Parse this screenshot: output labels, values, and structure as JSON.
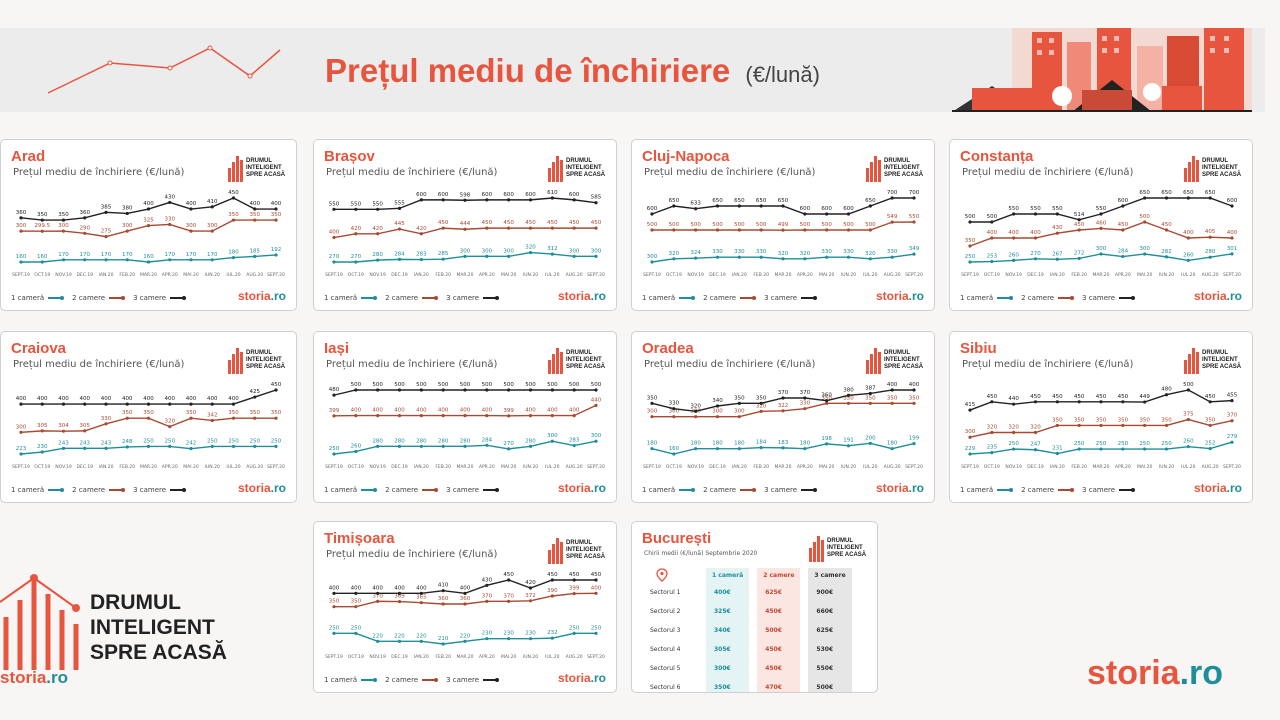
{
  "header": {
    "title": "Prețul mediu de închiriere",
    "unit": "(€/lună)"
  },
  "colors": {
    "accent": "#e8553e",
    "teal": "#1e8e9a",
    "brown": "#a84a32",
    "dark": "#222222"
  },
  "legend": {
    "s1": "1 cameră",
    "s2": "2 camere",
    "s3": "3 camere"
  },
  "logo_small": [
    "DRUMUL",
    "INTELIGENT",
    "SPRE ACASĂ"
  ],
  "card_subtitle": "Prețul mediu de închiriere (€/lună)",
  "storia": {
    "brand": "storia",
    "tld": ".ro"
  },
  "footer_logo": {
    "text": "DRUMUL\nINTELIGENT\nSPRE ACASĂ"
  },
  "months": [
    "SEPT.19",
    "OCT.19",
    "NOV.19",
    "DEC.19",
    "IAN.20",
    "FEB.20",
    "MAR.20",
    "APR.20",
    "MAI.20",
    "IUN.20",
    "IUL.20",
    "AUG.20",
    "SEPT.20"
  ],
  "chart_data": [
    {
      "type": "line",
      "city": "Arad",
      "series": [
        {
          "name": "1 cameră",
          "values": [
            160,
            160,
            170,
            170,
            170,
            170,
            160,
            170,
            170,
            170,
            180,
            185,
            192
          ]
        },
        {
          "name": "2 camere",
          "values": [
            300,
            299.5,
            300,
            290,
            275,
            300,
            325,
            330,
            300,
            300,
            350,
            350,
            350
          ]
        },
        {
          "name": "3 camere",
          "values": [
            360,
            350,
            350,
            360,
            385,
            380,
            400,
            430,
            400,
            410,
            450,
            400,
            400
          ]
        }
      ]
    },
    {
      "type": "line",
      "city": "Brașov",
      "series": [
        {
          "name": "1 cameră",
          "values": [
            270,
            270,
            280,
            284,
            283,
            285,
            300,
            300,
            300,
            320,
            312,
            300,
            300
          ]
        },
        {
          "name": "2 camere",
          "values": [
            400,
            420,
            420,
            445,
            420,
            450,
            444,
            450,
            450,
            450,
            450,
            450,
            450
          ]
        },
        {
          "name": "3 camere",
          "values": [
            550,
            550,
            550,
            555,
            600,
            600,
            598,
            600,
            600,
            600,
            610,
            600,
            585
          ]
        }
      ]
    },
    {
      "type": "line",
      "city": "Cluj-Napoca",
      "series": [
        {
          "name": "1 cameră",
          "values": [
            300,
            320,
            324,
            330,
            330,
            330,
            320,
            320,
            330,
            330,
            320,
            330,
            349
          ]
        },
        {
          "name": "2 camere",
          "values": [
            500,
            500,
            500,
            500,
            500,
            500,
            499,
            500,
            500,
            500,
            500,
            549,
            550
          ]
        },
        {
          "name": "3 camere",
          "values": [
            600,
            650,
            633,
            650,
            650,
            650,
            650,
            600,
            600,
            600,
            650,
            700,
            700
          ]
        }
      ]
    },
    {
      "type": "line",
      "city": "Constanța",
      "series": [
        {
          "name": "1 cameră",
          "values": [
            250,
            253,
            260,
            270,
            267,
            272,
            300,
            284,
            300,
            282,
            260,
            280,
            301
          ]
        },
        {
          "name": "2 camere",
          "values": [
            350,
            400,
            400,
            400,
            430,
            450,
            460,
            450,
            500,
            450,
            400,
            405,
            400
          ]
        },
        {
          "name": "3 camere",
          "values": [
            500,
            500,
            550,
            550,
            550,
            514,
            550,
            600,
            650,
            650,
            650,
            650,
            600
          ]
        }
      ]
    },
    {
      "type": "line",
      "city": "Craiova",
      "series": [
        {
          "name": "1 cameră",
          "values": [
            223,
            230,
            243,
            243,
            243,
            248,
            250,
            250,
            242,
            250,
            250,
            250,
            250
          ]
        },
        {
          "name": "2 camere",
          "values": [
            300,
            305,
            304,
            305,
            330,
            350,
            350,
            320,
            350,
            342,
            350,
            350,
            350
          ]
        },
        {
          "name": "3 camere",
          "values": [
            400,
            400,
            400,
            400,
            400,
            400,
            400,
            400,
            400,
            400,
            400,
            425,
            450
          ]
        }
      ]
    },
    {
      "type": "line",
      "city": "Iași",
      "series": [
        {
          "name": "1 cameră",
          "values": [
            250,
            260,
            280,
            280,
            280,
            280,
            280,
            284,
            270,
            280,
            300,
            283,
            300
          ]
        },
        {
          "name": "2 camere",
          "values": [
            399,
            400,
            400,
            400,
            400,
            400,
            400,
            400,
            399,
            400,
            400,
            400,
            440
          ]
        },
        {
          "name": "3 camere",
          "values": [
            480,
            500,
            500,
            500,
            500,
            500,
            500,
            500,
            500,
            500,
            500,
            500,
            500
          ]
        }
      ]
    },
    {
      "type": "line",
      "city": "Oradea",
      "series": [
        {
          "name": "1 cameră",
          "values": [
            180,
            160,
            180,
            180,
            180,
            184,
            183,
            180,
            198,
            191,
            200,
            180,
            199
          ]
        },
        {
          "name": "2 camere",
          "values": [
            300,
            300,
            300,
            300,
            300,
            320,
            322,
            330,
            350,
            350,
            350,
            350,
            350
          ]
        },
        {
          "name": "3 camere",
          "values": [
            350,
            330,
            320,
            340,
            350,
            350,
            370,
            370,
            360,
            380,
            387,
            400,
            400
          ]
        }
      ]
    },
    {
      "type": "line",
      "city": "Sibiu",
      "series": [
        {
          "name": "1 cameră",
          "values": [
            229,
            235,
            250,
            247,
            231,
            250,
            250,
            250,
            250,
            250,
            260,
            252,
            279
          ]
        },
        {
          "name": "2 camere",
          "values": [
            300,
            320,
            320,
            320,
            350,
            350,
            350,
            350,
            350,
            350,
            375,
            350,
            370
          ]
        },
        {
          "name": "3 camere",
          "values": [
            415,
            450,
            440,
            450,
            450,
            450,
            450,
            450,
            449,
            480,
            500,
            450,
            455
          ]
        }
      ]
    },
    {
      "type": "line",
      "city": "Timișoara",
      "series": [
        {
          "name": "1 cameră",
          "values": [
            250,
            250,
            220,
            220,
            220,
            210,
            220,
            230,
            230,
            230,
            232,
            250,
            250
          ]
        },
        {
          "name": "2 camere",
          "values": [
            350,
            350,
            370,
            369,
            365,
            360,
            360,
            370,
            370,
            372,
            390,
            399,
            400
          ]
        },
        {
          "name": "3 camere",
          "values": [
            400,
            400,
            400,
            400,
            400,
            410,
            400,
            430,
            450,
            420,
            450,
            450,
            450
          ]
        }
      ]
    },
    {
      "type": "table",
      "city": "București",
      "subtitle": "Chirii medii (€/lună) Septembrie 2020",
      "columns": [
        "1 cameră",
        "2 camere",
        "3 camere"
      ],
      "rows": [
        {
          "label": "Sectorul 1",
          "values": [
            "400€",
            "625€",
            "900€"
          ]
        },
        {
          "label": "Sectorul 2",
          "values": [
            "325€",
            "450€",
            "660€"
          ]
        },
        {
          "label": "Sectorul 3",
          "values": [
            "340€",
            "500€",
            "625€"
          ]
        },
        {
          "label": "Sectorul 4",
          "values": [
            "305€",
            "450€",
            "530€"
          ]
        },
        {
          "label": "Sectorul 5",
          "values": [
            "300€",
            "450€",
            "550€"
          ]
        },
        {
          "label": "Sectorul 6",
          "values": [
            "350€",
            "470€",
            "500€"
          ]
        }
      ]
    }
  ]
}
